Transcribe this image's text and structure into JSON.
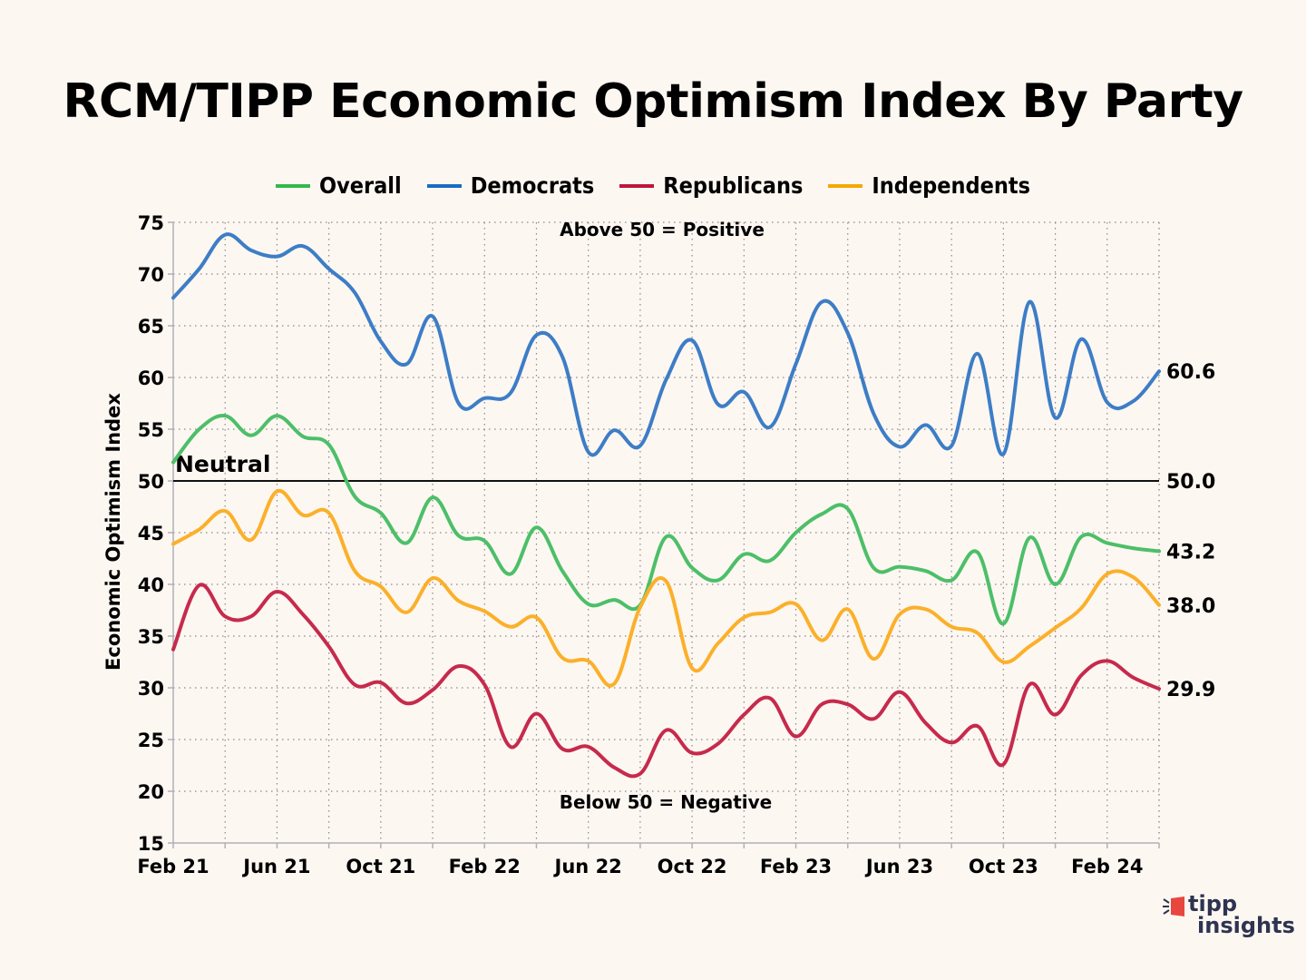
{
  "chart_data": {
    "type": "line",
    "title": "RCM/TIPP Economic Optimism Index By Party",
    "xlabel": "",
    "ylabel": "Economic Optimism Index",
    "ylim": [
      15,
      75
    ],
    "yticks": [
      15,
      20,
      25,
      30,
      35,
      40,
      45,
      50,
      55,
      60,
      65,
      70,
      75
    ],
    "x": [
      "Feb 21",
      "Mar 21",
      "Apr 21",
      "May 21",
      "Jun 21",
      "Jul 21",
      "Aug 21",
      "Sep 21",
      "Oct 21",
      "Nov 21",
      "Dec 21",
      "Jan 22",
      "Feb 22",
      "Mar 22",
      "Apr 22",
      "May 22",
      "Jun 22",
      "Jul 22",
      "Aug 22",
      "Sep 22",
      "Oct 22",
      "Nov 22",
      "Dec 22",
      "Jan 23",
      "Feb 23",
      "Mar 23",
      "Apr 23",
      "May 23",
      "Jun 23",
      "Jul 23",
      "Aug 23",
      "Sep 23",
      "Oct 23",
      "Nov 23",
      "Dec 23",
      "Jan 24",
      "Feb 24",
      "Mar 24",
      "Apr 24"
    ],
    "xtick_labels": [
      {
        "index": 0,
        "label": "Feb 21"
      },
      {
        "index": 4,
        "label": "Jun 21"
      },
      {
        "index": 8,
        "label": "Oct 21"
      },
      {
        "index": 12,
        "label": "Feb 22"
      },
      {
        "index": 16,
        "label": "Jun 22"
      },
      {
        "index": 20,
        "label": "Oct 22"
      },
      {
        "index": 24,
        "label": "Feb 23"
      },
      {
        "index": 28,
        "label": "Jun 23"
      },
      {
        "index": 32,
        "label": "Oct 23"
      },
      {
        "index": 36,
        "label": "Feb 24"
      }
    ],
    "grid": true,
    "legend_position": "top-center",
    "series": [
      {
        "name": "Overall",
        "color": "#4cbf68",
        "legend_color": "#33b84a",
        "values": [
          51.8,
          55.0,
          56.3,
          54.4,
          56.3,
          54.3,
          53.5,
          48.5,
          46.9,
          44.0,
          48.4,
          44.7,
          44.2,
          41.0,
          45.5,
          41.3,
          38.1,
          38.5,
          38.0,
          44.6,
          41.6,
          40.4,
          42.9,
          42.3,
          45.0,
          46.8,
          47.3,
          41.6,
          41.7,
          41.3,
          40.4,
          43.1,
          36.2,
          44.5,
          40.0,
          44.6,
          44.0,
          43.5,
          43.2
        ],
        "end_label": "43.2"
      },
      {
        "name": "Democrats",
        "color": "#3d7dc6",
        "legend_color": "#1a6bc4",
        "values": [
          67.7,
          70.5,
          73.8,
          72.3,
          71.7,
          72.7,
          70.5,
          68.2,
          63.5,
          61.3,
          65.9,
          57.5,
          58.0,
          58.5,
          64.1,
          62.0,
          52.8,
          54.9,
          53.4,
          59.8,
          63.6,
          57.4,
          58.6,
          55.2,
          61.3,
          67.3,
          64.3,
          56.5,
          53.3,
          55.4,
          53.4,
          62.3,
          52.6,
          67.3,
          56.1,
          63.7,
          57.6,
          57.7,
          60.6
        ],
        "end_label": "60.6"
      },
      {
        "name": "Republicans",
        "color": "#c62a4c",
        "legend_color": "#c0143c",
        "values": [
          33.7,
          39.9,
          36.9,
          36.9,
          39.3,
          37.1,
          34.0,
          30.3,
          30.5,
          28.5,
          29.8,
          32.1,
          30.3,
          24.3,
          27.5,
          24.1,
          24.3,
          22.3,
          21.7,
          25.9,
          23.7,
          24.6,
          27.4,
          29.0,
          25.3,
          28.4,
          28.4,
          27.0,
          29.6,
          26.6,
          24.7,
          26.3,
          22.6,
          30.3,
          27.4,
          31.2,
          32.6,
          31.0,
          29.9
        ],
        "end_label": "29.9"
      },
      {
        "name": "Independents",
        "color": "#fbb02a",
        "legend_color": "#f5a800",
        "values": [
          43.9,
          45.3,
          47.1,
          44.3,
          49.0,
          46.7,
          46.9,
          41.3,
          39.8,
          37.3,
          40.6,
          38.4,
          37.4,
          35.9,
          36.8,
          32.9,
          32.6,
          30.4,
          37.8,
          40.3,
          31.9,
          34.3,
          36.8,
          37.3,
          38.1,
          34.6,
          37.6,
          32.8,
          37.1,
          37.6,
          35.9,
          35.3,
          32.5,
          34.0,
          35.8,
          37.7,
          41.0,
          40.7,
          38.0
        ],
        "end_label": "38.0"
      }
    ],
    "reference_line": {
      "value": 50,
      "label": "Neutral",
      "end_label": "50.0"
    },
    "annotations": {
      "above": "Above 50 = Positive",
      "below": "Below 50 = Negative"
    }
  },
  "branding": {
    "logo_line1": "tipp",
    "logo_line2": "insights",
    "logo_accent": "#e8473f",
    "logo_text_color": "#2e3450"
  }
}
